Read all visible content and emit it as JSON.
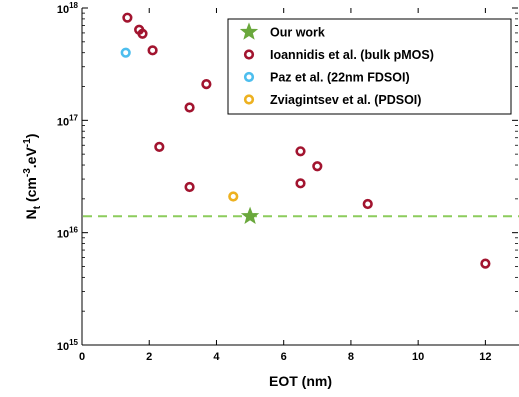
{
  "chart_data": {
    "type": "scatter",
    "xlabel": "EOT (nm)",
    "ylabel_parts": [
      "N",
      "t",
      " (cm",
      "-3",
      ".eV",
      "-1",
      ")"
    ],
    "xlim": [
      0,
      13
    ],
    "ylim": [
      1000000000000000.0,
      1e+18
    ],
    "yscale": "log",
    "x_ticks": [
      0,
      2,
      4,
      6,
      8,
      10,
      12
    ],
    "y_ticks": [
      {
        "value": 1000000000000000.0,
        "base": "10",
        "exp": "15"
      },
      {
        "value": 1e+16,
        "base": "10",
        "exp": "16"
      },
      {
        "value": 1e+17,
        "base": "10",
        "exp": "17"
      },
      {
        "value": 1e+18,
        "base": "10",
        "exp": "18"
      }
    ],
    "grid": false,
    "legend_position": "top-right",
    "reference_line": {
      "y": 1.4e+16,
      "style": "dashed",
      "color": "#8ccc5c"
    },
    "series": [
      {
        "name": "Our work",
        "marker": "star",
        "color": "#6aa83c",
        "points": [
          {
            "x": 5.0,
            "y": 1.4e+16
          }
        ]
      },
      {
        "name": "Ioannidis et al. (bulk pMOS)",
        "marker": "circle",
        "color": "#a2142f",
        "points": [
          {
            "x": 1.35,
            "y": 8.2e+17
          },
          {
            "x": 1.7,
            "y": 6.4e+17
          },
          {
            "x": 1.8,
            "y": 5.9e+17
          },
          {
            "x": 2.1,
            "y": 4.2e+17
          },
          {
            "x": 3.7,
            "y": 2.1e+17
          },
          {
            "x": 3.2,
            "y": 1.3e+17
          },
          {
            "x": 2.3,
            "y": 5.8e+16
          },
          {
            "x": 3.2,
            "y": 2.55e+16
          },
          {
            "x": 6.5,
            "y": 5.3e+16
          },
          {
            "x": 7.0,
            "y": 3.9e+16
          },
          {
            "x": 6.5,
            "y": 2.75e+16
          },
          {
            "x": 8.5,
            "y": 1.8e+16
          },
          {
            "x": 12.0,
            "y": 5300000000000000.0
          }
        ]
      },
      {
        "name": "Paz et al. (22nm FDSOI)",
        "marker": "circle",
        "color": "#4dbeee",
        "points": [
          {
            "x": 1.3,
            "y": 4e+17
          }
        ]
      },
      {
        "name": "Zviagintsev et al. (PDSOI)",
        "marker": "circle",
        "color": "#edb120",
        "points": [
          {
            "x": 4.5,
            "y": 2.1e+16
          }
        ]
      }
    ]
  }
}
